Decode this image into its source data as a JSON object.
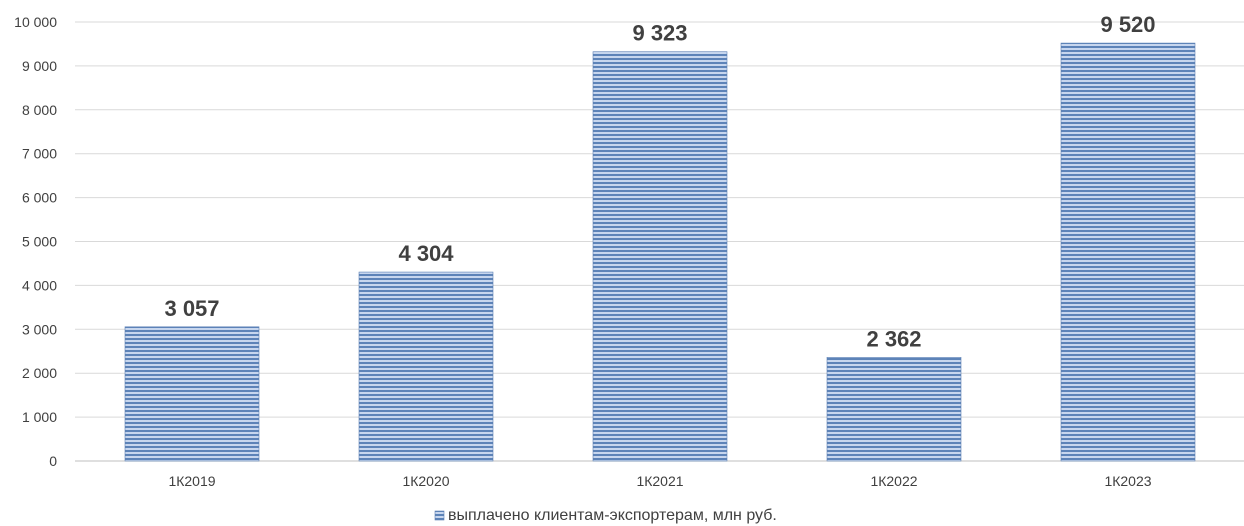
{
  "chart_data": {
    "type": "bar",
    "title": "",
    "xlabel": "",
    "ylabel": "",
    "categories": [
      "1К2019",
      "1К2020",
      "1К2021",
      "1К2022",
      "1К2023"
    ],
    "series": [
      {
        "name": "выплачено клиентам-экспортерам, млн руб.",
        "values": [
          3057,
          4304,
          9323,
          2362,
          9520
        ]
      }
    ],
    "data_labels": [
      "3 057",
      "4 304",
      "9 323",
      "2 362",
      "9 520"
    ],
    "ylim": [
      0,
      10000
    ],
    "y_ticks": [
      0,
      1000,
      2000,
      3000,
      4000,
      5000,
      6000,
      7000,
      8000,
      9000,
      10000
    ],
    "y_tick_labels": [
      "0",
      "1 000",
      "2 000",
      "3 000",
      "4 000",
      "5 000",
      "6 000",
      "7 000",
      "8 000",
      "9 000",
      "10 000"
    ],
    "grid": true,
    "legend": "bottom",
    "colors": {
      "bar_light": "#c7d6ee",
      "bar_dark": "#5d83b8",
      "bar_border": "#5b7fb3",
      "grid": "#d9d9d9",
      "text": "#404040"
    }
  }
}
